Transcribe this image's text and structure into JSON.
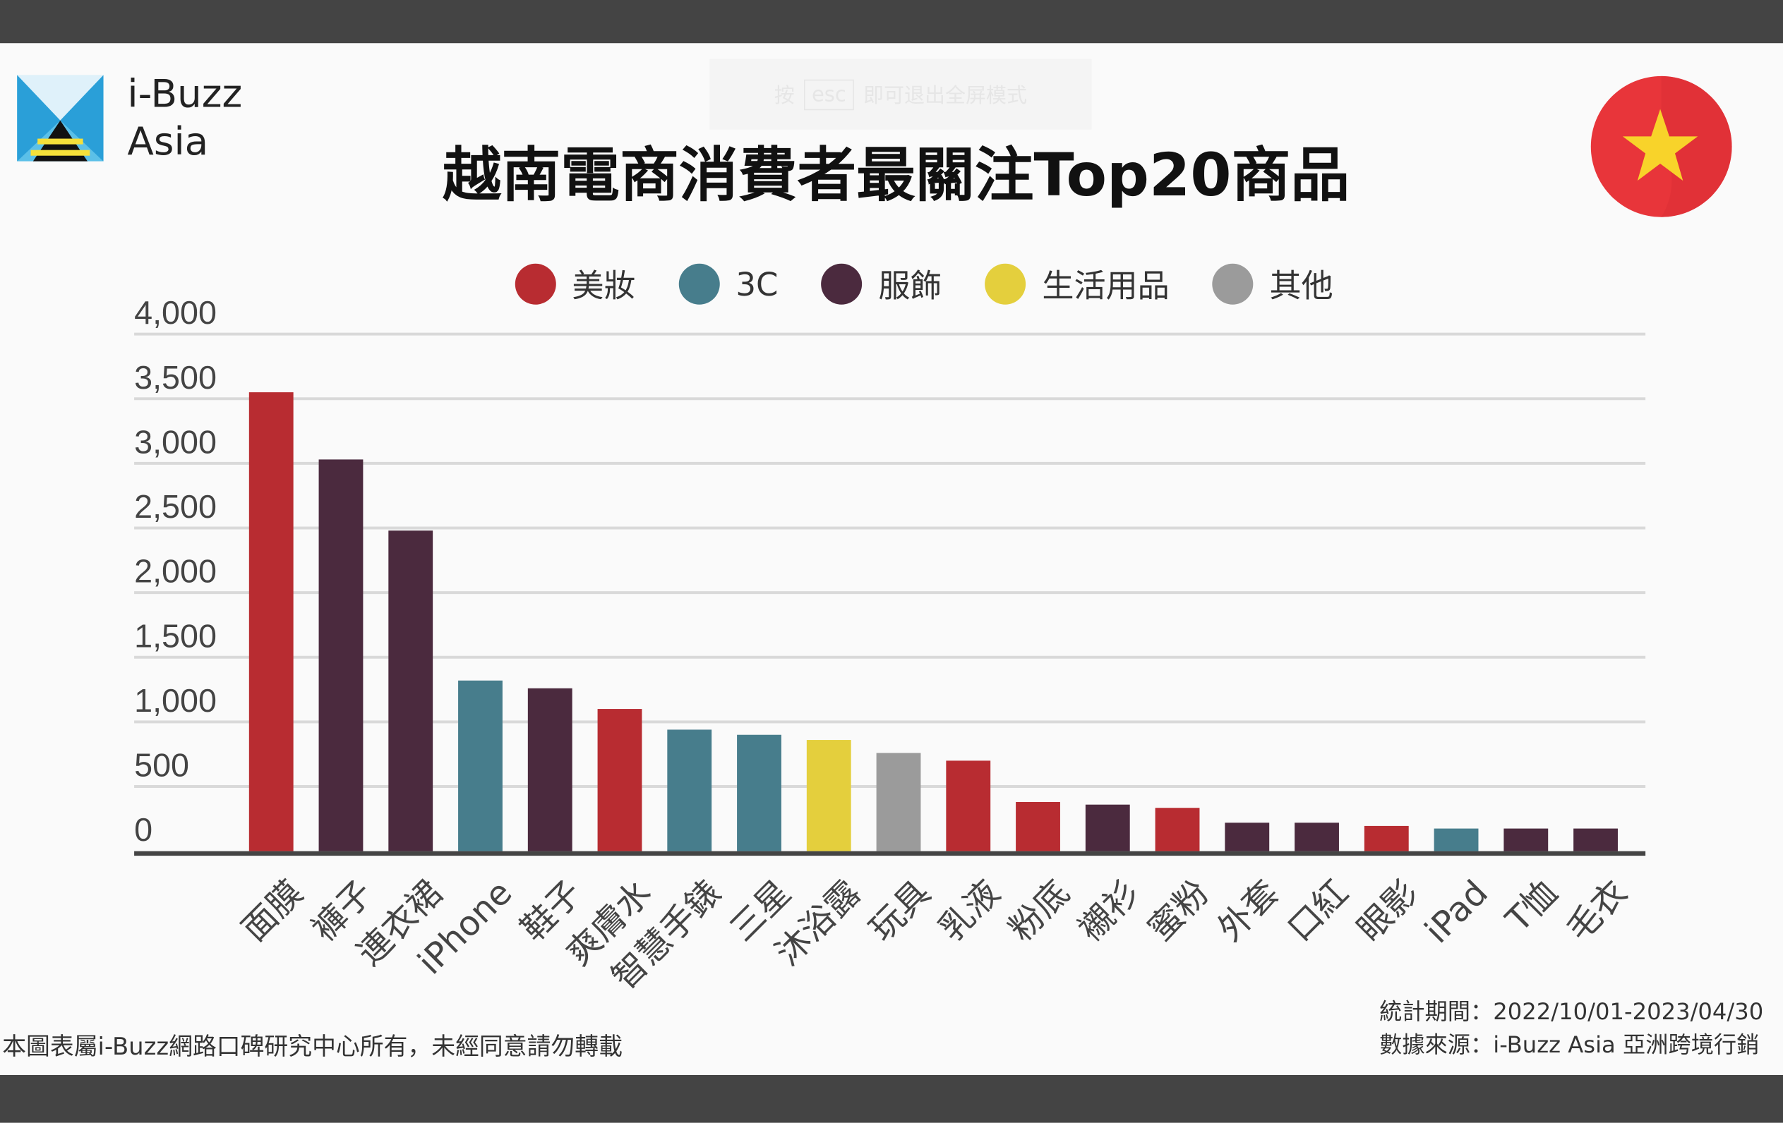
{
  "overlay": {
    "prefix": "按",
    "key": "esc",
    "suffix": "即可退出全屏模式"
  },
  "brand": {
    "line1": "i-Buzz",
    "line2": "Asia"
  },
  "flag_icon": "vietnam-flag-icon",
  "colors": {
    "美妝": "#b82c31",
    "3C": "#477d8c",
    "服飾": "#4b2a3e",
    "生活用品": "#e4cf3d",
    "其他": "#9b9b9b"
  },
  "chart_data": {
    "type": "bar",
    "title": "越南電商消費者最關注Top20商品",
    "xlabel": "",
    "ylabel": "",
    "ylim": [
      0,
      4000
    ],
    "yticks": [
      "0",
      "500",
      "1,000",
      "1,500",
      "2,000",
      "2,500",
      "3,000",
      "3,500",
      "4,000"
    ],
    "grid": true,
    "legend_position": "top",
    "legend": [
      "美妝",
      "3C",
      "服飾",
      "生活用品",
      "其他"
    ],
    "categories": [
      "面膜",
      "褲子",
      "連衣裙",
      "iPhone",
      "鞋子",
      "爽膚水",
      "智慧手錶",
      "三星",
      "沐浴露",
      "玩具",
      "乳液",
      "粉底",
      "襯衫",
      "蜜粉",
      "外套",
      "口紅",
      "眼影",
      "iPad",
      "T恤",
      "毛衣"
    ],
    "values": [
      3550,
      3030,
      2480,
      1320,
      1260,
      1100,
      940,
      900,
      860,
      760,
      700,
      380,
      360,
      335,
      220,
      220,
      195,
      175,
      175,
      175
    ],
    "groups": [
      "美妝",
      "服飾",
      "服飾",
      "3C",
      "服飾",
      "美妝",
      "3C",
      "3C",
      "生活用品",
      "其他",
      "美妝",
      "美妝",
      "服飾",
      "美妝",
      "服飾",
      "服飾",
      "美妝",
      "3C",
      "服飾",
      "服飾"
    ]
  },
  "footer": {
    "copyright": "本圖表屬i-Buzz網路口碑研究中心所有，未經同意請勿轉載",
    "period": "統計期間：2022/10/01-2023/04/30",
    "source": "數據來源：i-Buzz Asia 亞洲跨境行銷"
  }
}
